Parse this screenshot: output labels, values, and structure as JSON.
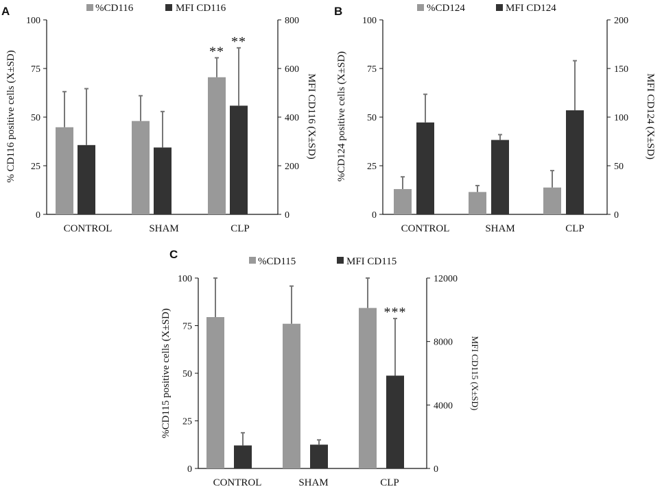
{
  "colors": {
    "percent": "#999999",
    "mfi": "#333333",
    "error": "#777777",
    "axis": "#111111"
  },
  "chart_data": [
    {
      "type": "bar",
      "panel": "A",
      "categories": [
        "CONTROL",
        "SHAM",
        "CLP"
      ],
      "series": [
        {
          "name": "%CD116",
          "axis": "left",
          "values": [
            44.8,
            48,
            70.5
          ],
          "errors": [
            18.3,
            13,
            10
          ]
        },
        {
          "name": "MFI CD116",
          "axis": "right",
          "values": [
            285,
            275,
            447
          ],
          "errors": [
            232,
            148,
            238
          ]
        }
      ],
      "ylabel_left": "% CD116 positive cells (X±SD)",
      "ylabel_right": "MFI CD116 (X±SD)",
      "ylim_left": [
        0,
        100
      ],
      "ylim_right": [
        0,
        800
      ],
      "yticks_left": [
        "0",
        "25",
        "50",
        "75",
        "100"
      ],
      "yticks_right": [
        "0",
        "200",
        "400",
        "600",
        "800"
      ],
      "annotations": [
        {
          "category": 2,
          "series": 0,
          "text": "**"
        },
        {
          "category": 2,
          "series": 1,
          "text": "**"
        }
      ]
    },
    {
      "type": "bar",
      "panel": "B",
      "categories": [
        "CONTROL",
        "SHAM",
        "CLP"
      ],
      "series": [
        {
          "name": "%CD124",
          "axis": "left",
          "values": [
            13,
            11.5,
            13.8
          ],
          "errors": [
            6.3,
            3.3,
            8.7
          ]
        },
        {
          "name": "MFI CD124",
          "axis": "right",
          "values": [
            94.5,
            76.5,
            107
          ],
          "errors": [
            29,
            5.5,
            51
          ]
        }
      ],
      "ylabel_left": "%CD124 positive cells (X±SD)",
      "ylabel_right": "MFI CD124 (X±SD)",
      "ylim_left": [
        0,
        100
      ],
      "ylim_right": [
        0,
        200
      ],
      "yticks_left": [
        "0",
        "25",
        "50",
        "75",
        "100"
      ],
      "yticks_right": [
        "0",
        "50",
        "100",
        "150",
        "200"
      ],
      "annotations": []
    },
    {
      "type": "bar",
      "panel": "C",
      "categories": [
        "CONTROL",
        "SHAM",
        "CLP"
      ],
      "series": [
        {
          "name": "%CD115",
          "axis": "left",
          "values": [
            79.5,
            76,
            84.3
          ],
          "errors": [
            20.5,
            19.8,
            15.7
          ]
        },
        {
          "name": "MFI CD115",
          "axis": "right",
          "values": [
            1450,
            1500,
            5850
          ],
          "errors": [
            800,
            300,
            3600
          ]
        }
      ],
      "ylabel_left": "%CD115 positive cells (X±SD)",
      "ylabel_right": "MFI CD115 (X±SD)",
      "ylim_left": [
        0,
        100
      ],
      "ylim_right": [
        0,
        12000
      ],
      "yticks_left": [
        "0",
        "25",
        "50",
        "75",
        "100"
      ],
      "yticks_right": [
        "0",
        "4000",
        "8000",
        "12000"
      ],
      "annotations": [
        {
          "category": 2,
          "series": 1,
          "text": "***"
        }
      ]
    }
  ]
}
